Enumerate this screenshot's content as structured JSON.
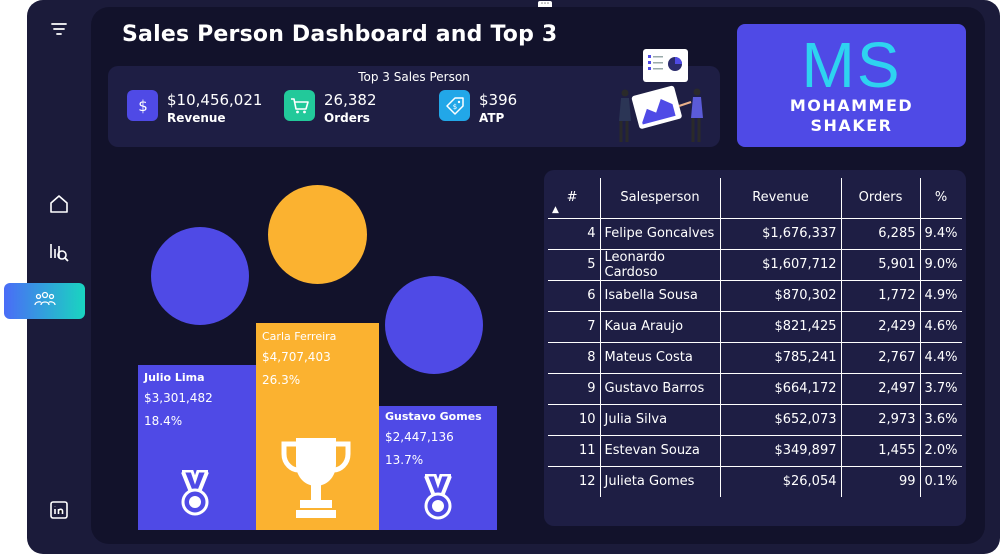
{
  "page": {
    "title": "Sales Person Dashboard and Top 3",
    "more_glyph": "⋯"
  },
  "sidebar": {
    "items": [
      {
        "name": "filter",
        "icon": "filter-lines-icon"
      },
      {
        "name": "home",
        "icon": "home-icon"
      },
      {
        "name": "analysis",
        "icon": "chart-search-icon"
      },
      {
        "name": "salespeople",
        "icon": "people-group-icon",
        "active": true
      },
      {
        "name": "linkedin",
        "icon": "linkedin-icon"
      }
    ]
  },
  "kpi_card": {
    "heading": "Top 3 Sales Person",
    "items": [
      {
        "value": "$10,456,021",
        "label": "Revenue",
        "icon": "dollar-icon",
        "color": "#4f4ae6"
      },
      {
        "value": "26,382",
        "label": "Orders",
        "icon": "cart-icon",
        "color": "#22c99a"
      },
      {
        "value": "$396",
        "label": "ATP",
        "icon": "price-tag-icon",
        "color": "#22a7e8"
      }
    ],
    "illustration": "people-presenting-chart-illustration"
  },
  "logo": {
    "initials": "MS",
    "first_name": "MOHAMMED",
    "last_name": "SHAKER"
  },
  "podium": {
    "colors": {
      "first": "#fbb230",
      "second": "#4f4ae6",
      "third": "#4f4ae6"
    },
    "first": {
      "name": "Carla Ferreira",
      "revenue": "$4,707,403",
      "share": "26.3%",
      "icon": "trophy-icon"
    },
    "second": {
      "name": "Julio Lima",
      "revenue": "$3,301,482",
      "share": "18.4%",
      "icon": "medal-icon"
    },
    "third": {
      "name": "Gustavo Gomes",
      "revenue": "$2,447,136",
      "share": "13.7%",
      "icon": "medal-icon"
    }
  },
  "table": {
    "sort_indicator": "▲",
    "headers": [
      "#",
      "Salesperson",
      "Revenue",
      "Orders",
      "%"
    ],
    "rows": [
      [
        "4",
        "Felipe Goncalves",
        "$1,676,337",
        "6,285",
        "9.4%"
      ],
      [
        "5",
        "Leonardo Cardoso",
        "$1,607,712",
        "5,901",
        "9.0%"
      ],
      [
        "6",
        "Isabella Sousa",
        "$870,302",
        "1,772",
        "4.9%"
      ],
      [
        "7",
        "Kaua Araujo",
        "$821,425",
        "2,429",
        "4.6%"
      ],
      [
        "8",
        "Mateus Costa",
        "$785,241",
        "2,767",
        "4.4%"
      ],
      [
        "9",
        "Gustavo Barros",
        "$664,172",
        "2,497",
        "3.7%"
      ],
      [
        "10",
        "Julia Silva",
        "$652,073",
        "2,973",
        "3.6%"
      ],
      [
        "11",
        "Estevan Souza",
        "$349,897",
        "1,455",
        "2.0%"
      ],
      [
        "12",
        "Julieta Gomes",
        "$26,054",
        "99",
        "0.1%"
      ]
    ]
  }
}
